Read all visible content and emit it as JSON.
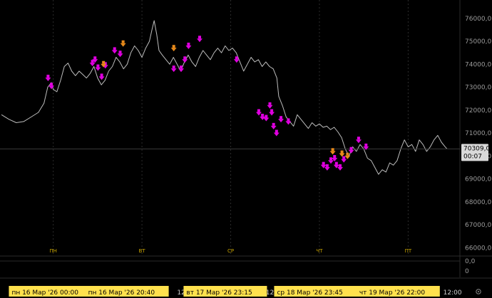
{
  "chart_data": {
    "type": "line",
    "y_ticks": [
      "76000,0",
      "75000,0",
      "74000,0",
      "73000,0",
      "72000,0",
      "71000,0",
      "70000,0",
      "69000,0",
      "68000,0",
      "67000,0",
      "66000,0"
    ],
    "ylim": [
      65700,
      76800
    ],
    "last_price": "70309,0",
    "countdown": "00:07",
    "day_markers": [
      {
        "label": "ПН",
        "t": 12
      },
      {
        "label": "ВТ",
        "t": 36
      },
      {
        "label": "СР",
        "t": 60
      },
      {
        "label": "ЧТ",
        "t": 84
      },
      {
        "label": "ПТ",
        "t": 108
      }
    ],
    "time_labels": [
      {
        "label": "12:00",
        "t": 48
      },
      {
        "label": "12:00",
        "t": 72
      },
      {
        "label": "12:00",
        "t": 96
      },
      {
        "label": "12:00",
        "t": 120
      }
    ],
    "date_labels": [
      {
        "label": "пн 16 Мар '26   00:00",
        "t": 0
      },
      {
        "label": "пн 16 Мар '26   20:40",
        "t": 20.67
      },
      {
        "label": "вт 17 Мар '26   23:15",
        "t": 47.25
      },
      {
        "label": "ср 18 Мар '26   23:45",
        "t": 71.75
      },
      {
        "label": "чт 19 Мар '26   22:00",
        "t": 94
      }
    ],
    "indicator_ticks": [
      "0,0",
      "0"
    ],
    "x_range_hours": [
      -2.4,
      122
    ],
    "series": [
      {
        "points": [
          [
            -2,
            71800
          ],
          [
            0,
            71600
          ],
          [
            2,
            71450
          ],
          [
            4,
            71500
          ],
          [
            6,
            71700
          ],
          [
            8,
            71900
          ],
          [
            9.5,
            72300
          ],
          [
            10.5,
            73000
          ],
          [
            11.5,
            73200
          ],
          [
            12,
            72900
          ],
          [
            13,
            72800
          ],
          [
            14,
            73300
          ],
          [
            15,
            73900
          ],
          [
            16,
            74050
          ],
          [
            17,
            73700
          ],
          [
            18,
            73500
          ],
          [
            19,
            73700
          ],
          [
            20,
            73550
          ],
          [
            21,
            73400
          ],
          [
            22,
            73600
          ],
          [
            23,
            73900
          ],
          [
            24,
            73400
          ],
          [
            25,
            73100
          ],
          [
            26,
            73300
          ],
          [
            27,
            73700
          ],
          [
            28,
            73900
          ],
          [
            29,
            74300
          ],
          [
            30,
            74100
          ],
          [
            31,
            73800
          ],
          [
            32,
            74000
          ],
          [
            33,
            74500
          ],
          [
            34,
            74800
          ],
          [
            35,
            74600
          ],
          [
            36,
            74300
          ],
          [
            37,
            74700
          ],
          [
            38,
            75000
          ],
          [
            38.7,
            75500
          ],
          [
            39.3,
            75900
          ],
          [
            40,
            75300
          ],
          [
            40.6,
            74600
          ],
          [
            41.5,
            74400
          ],
          [
            42.5,
            74200
          ],
          [
            43.5,
            74000
          ],
          [
            44.5,
            74300
          ],
          [
            45.5,
            74000
          ],
          [
            46.5,
            73700
          ],
          [
            47.5,
            74100
          ],
          [
            48.5,
            74400
          ],
          [
            49.5,
            74100
          ],
          [
            50.5,
            73900
          ],
          [
            51.5,
            74300
          ],
          [
            52.5,
            74600
          ],
          [
            53.5,
            74400
          ],
          [
            54.5,
            74200
          ],
          [
            55.5,
            74500
          ],
          [
            56.5,
            74700
          ],
          [
            57.5,
            74500
          ],
          [
            58.5,
            74800
          ],
          [
            59.5,
            74600
          ],
          [
            60.5,
            74700
          ],
          [
            61.5,
            74500
          ],
          [
            62.5,
            74100
          ],
          [
            63.5,
            73700
          ],
          [
            64.5,
            74000
          ],
          [
            65.5,
            74300
          ],
          [
            66.5,
            74100
          ],
          [
            67.5,
            74200
          ],
          [
            68.5,
            73900
          ],
          [
            69.5,
            74100
          ],
          [
            70.5,
            73900
          ],
          [
            71.5,
            73800
          ],
          [
            72.5,
            73400
          ],
          [
            73,
            72600
          ],
          [
            74,
            72200
          ],
          [
            75,
            71700
          ],
          [
            76,
            71500
          ],
          [
            77,
            71300
          ],
          [
            78,
            71800
          ],
          [
            79,
            71600
          ],
          [
            80,
            71400
          ],
          [
            81,
            71200
          ],
          [
            82,
            71450
          ],
          [
            83,
            71300
          ],
          [
            84,
            71400
          ],
          [
            85,
            71250
          ],
          [
            86,
            71300
          ],
          [
            87,
            71150
          ],
          [
            88,
            71250
          ],
          [
            89,
            71050
          ],
          [
            90,
            70800
          ],
          [
            91,
            70300
          ],
          [
            92,
            70000
          ],
          [
            93,
            70400
          ],
          [
            94,
            70200
          ],
          [
            95,
            70500
          ],
          [
            96,
            70300
          ],
          [
            97,
            69900
          ],
          [
            98,
            69800
          ],
          [
            99,
            69500
          ],
          [
            100,
            69200
          ],
          [
            101,
            69400
          ],
          [
            102,
            69300
          ],
          [
            103,
            69700
          ],
          [
            104,
            69600
          ],
          [
            105,
            69800
          ],
          [
            106,
            70300
          ],
          [
            107,
            70700
          ],
          [
            108,
            70400
          ],
          [
            109,
            70500
          ],
          [
            110,
            70200
          ],
          [
            111,
            70700
          ],
          [
            112,
            70500
          ],
          [
            113,
            70200
          ],
          [
            114,
            70400
          ],
          [
            115,
            70700
          ],
          [
            116,
            70900
          ],
          [
            117,
            70600
          ],
          [
            118,
            70400
          ],
          [
            118.5,
            70309
          ]
        ]
      }
    ],
    "markers_magenta": [
      [
        10.6,
        73200
      ],
      [
        11.5,
        72850
      ],
      [
        22.6,
        73850
      ],
      [
        23.3,
        74000
      ],
      [
        24.1,
        73650
      ],
      [
        25.1,
        73250
      ],
      [
        26.1,
        73750
      ],
      [
        28.6,
        74400
      ],
      [
        30.1,
        74250
      ],
      [
        44.6,
        73600
      ],
      [
        46.6,
        73600
      ],
      [
        47.6,
        74000
      ],
      [
        48.6,
        74600
      ],
      [
        51.6,
        74900
      ],
      [
        61.6,
        74000
      ],
      [
        67.6,
        71700
      ],
      [
        68.6,
        71500
      ],
      [
        69.6,
        71450
      ],
      [
        70.6,
        72000
      ],
      [
        71.1,
        71700
      ],
      [
        71.6,
        71100
      ],
      [
        72.4,
        70800
      ],
      [
        73.6,
        71400
      ],
      [
        75.6,
        71300
      ],
      [
        85.1,
        69400
      ],
      [
        86.1,
        69300
      ],
      [
        87.1,
        69600
      ],
      [
        88.1,
        69700
      ],
      [
        88.6,
        69400
      ],
      [
        89.6,
        69300
      ],
      [
        90.6,
        69650
      ],
      [
        92.6,
        70050
      ],
      [
        94.6,
        70500
      ],
      [
        96.6,
        70200
      ]
    ],
    "markers_orange": [
      [
        25.6,
        73800
      ],
      [
        30.9,
        74700
      ],
      [
        44.6,
        74500
      ],
      [
        87.6,
        70000
      ],
      [
        90.1,
        69900
      ],
      [
        91.6,
        69800
      ]
    ]
  }
}
